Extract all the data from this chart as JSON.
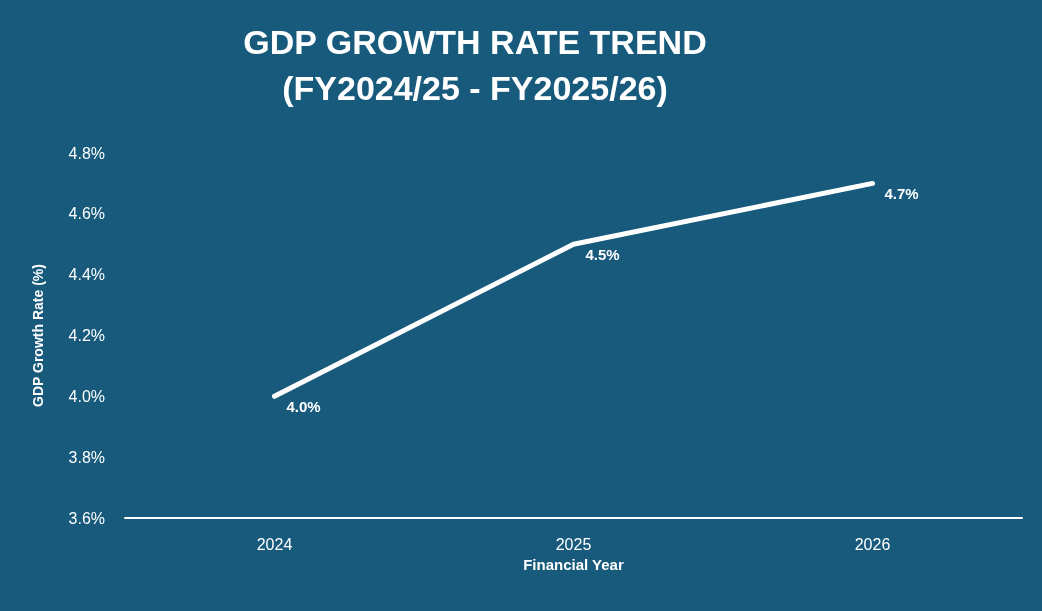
{
  "chart_data": {
    "type": "line",
    "title": "GDP GROWTH RATE TREND\n(FY2024/25 - FY2025/26)",
    "xlabel": "Financial Year",
    "ylabel": "GDP Growth Rate (%)",
    "categories": [
      "2024",
      "2025",
      "2026"
    ],
    "series": [
      {
        "color": "#ffffff",
        "values": [
          4.0,
          4.5,
          4.7
        ],
        "value_labels": [
          "4.0%",
          "4.5%",
          "4.7%"
        ]
      }
    ],
    "ylim": [
      3.6,
      4.8
    ],
    "yticks": [
      {
        "value": 3.6,
        "label": "3.6%"
      },
      {
        "value": 3.8,
        "label": "3.8%"
      },
      {
        "value": 4.0,
        "label": "4.0%"
      },
      {
        "value": 4.2,
        "label": "4.2%"
      },
      {
        "value": 4.4,
        "label": "4.4%"
      },
      {
        "value": 4.6,
        "label": "4.6%"
      },
      {
        "value": 4.8,
        "label": "4.8%"
      }
    ],
    "grid": false,
    "marker": "none",
    "line_style": "solid"
  }
}
